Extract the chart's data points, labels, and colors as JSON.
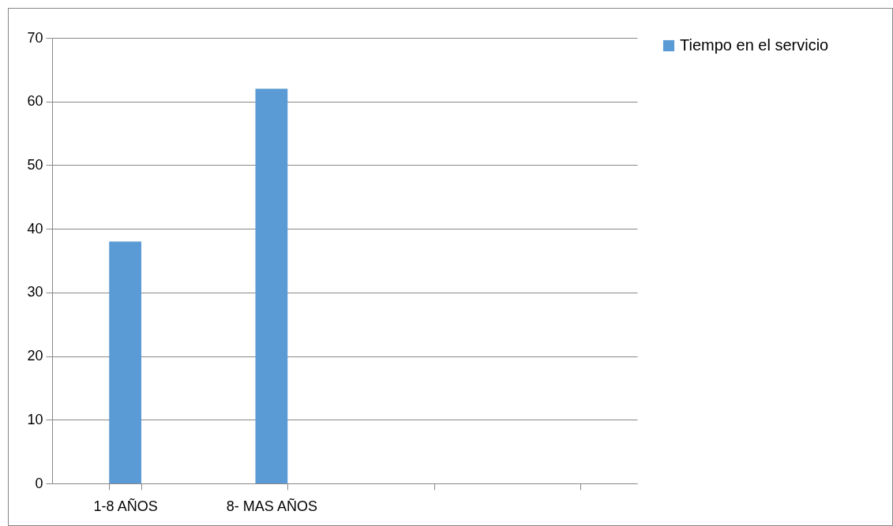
{
  "chart_data": {
    "type": "bar",
    "categories": [
      "1-8 AÑOS",
      "8- MAS AÑOS",
      null,
      null
    ],
    "series": [
      {
        "name": "Tiempo en el servicio",
        "color": "#5b9bd5",
        "values": [
          38,
          62,
          null,
          null
        ]
      }
    ],
    "ylim": [
      0,
      70
    ],
    "yticks": [
      0,
      10,
      20,
      30,
      40,
      50,
      60,
      70
    ],
    "grid": "y",
    "legend": "right"
  }
}
